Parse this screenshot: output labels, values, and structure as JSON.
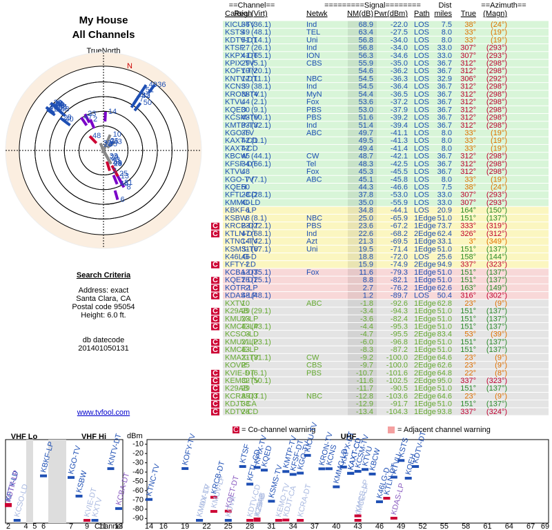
{
  "left": {
    "title": "My House",
    "subtitle": "All Channels",
    "north_label": "TrueNorth",
    "n": "N",
    "criteria_title": "Search Criteria",
    "criteria": [
      "Address: exact",
      "Santa Clara, CA",
      "Postal code 95054",
      "Height: 6.0 ft."
    ],
    "datecode_label": "db datecode",
    "datecode": "201401050131",
    "link": "www.tvfool.com"
  },
  "table": {
    "header1": [
      "==Channel==",
      "=========Signal========",
      "Dist",
      "==Azimuth=="
    ],
    "header2": [
      "Callsign",
      "Real",
      "(Virt)",
      "Netwk",
      "NM(dB)",
      "Pwr(dBm)",
      "Path",
      "miles",
      "True",
      "(Magn)"
    ],
    "rows": [
      [
        null,
        "KICU-TV",
        "36",
        "(36.1)",
        "Ind",
        "68.9",
        "-22.0",
        "LOS",
        "7.5",
        "38°",
        "(24°)"
      ],
      [
        null,
        "KSTS",
        "49",
        "(48.1)",
        "TEL",
        "63.4",
        "-27.5",
        "LOS",
        "8.0",
        "33°",
        "(19°)"
      ],
      [
        null,
        "KDTV-DT",
        "51",
        "(14.1)",
        "Uni",
        "56.8",
        "-34.0",
        "LOS",
        "8.0",
        "33°",
        "(19°)"
      ],
      [
        null,
        "KTSF",
        "27",
        "(26.1)",
        "Ind",
        "56.8",
        "-34.0",
        "LOS",
        "33.0",
        "307°",
        "(293°)"
      ],
      [
        null,
        "KKPX-DT",
        "41",
        "(65.1)",
        "ION",
        "56.3",
        "-34.6",
        "LOS",
        "33.0",
        "307°",
        "(293°)"
      ],
      [
        null,
        "KPIX-TV",
        "29",
        "(5.1)",
        "CBS",
        "55.9",
        "-35.0",
        "LOS",
        "36.7",
        "312°",
        "(298°)"
      ],
      [
        null,
        "KOFY-TV",
        "19",
        "(20.1)",
        null,
        "54.6",
        "-36.2",
        "LOS",
        "36.7",
        "312°",
        "(298°)"
      ],
      [
        null,
        "KNTV-DT",
        "12",
        "(11.1)",
        "NBC",
        "54.5",
        "-36.3",
        "LOS",
        "32.9",
        "306°",
        "(292°)"
      ],
      [
        null,
        "KCNS",
        "39",
        "(38.1)",
        "Ind",
        "54.5",
        "-36.4",
        "LOS",
        "36.7",
        "312°",
        "(298°)"
      ],
      [
        null,
        "KRON-TV",
        "38",
        "(4.1)",
        "MyN",
        "54.4",
        "-36.5",
        "LOS",
        "36.7",
        "312°",
        "(298°)"
      ],
      [
        null,
        "KTVU",
        "44",
        "(2.1)",
        "Fox",
        "53.6",
        "-37.2",
        "LOS",
        "36.7",
        "312°",
        "(298°)"
      ],
      [
        null,
        "KQED",
        "30",
        "(9.1)",
        "PBS",
        "53.0",
        "-37.9",
        "LOS",
        "36.7",
        "312°",
        "(298°)"
      ],
      [
        null,
        "KCSM-TV",
        "43",
        "(60.1)",
        "PBS",
        "51.6",
        "-39.2",
        "LOS",
        "36.7",
        "312°",
        "(298°)"
      ],
      [
        null,
        "KMTP-TV",
        "33",
        "(32.1)",
        "Ind",
        "51.4",
        "-39.4",
        "LOS",
        "36.7",
        "312°",
        "(298°)"
      ],
      [
        null,
        "KGO-TV",
        "35",
        null,
        "ABC",
        "49.7",
        "-41.1",
        "LOS",
        "8.0",
        "33°",
        "(19°)"
      ],
      [
        null,
        "KAXT-CD",
        "42",
        "(1.1)",
        null,
        "49.5",
        "-41.3",
        "LOS",
        "8.0",
        "33°",
        "(19°)"
      ],
      [
        null,
        "KAXT-CD",
        "42",
        null,
        null,
        "49.4",
        "-41.4",
        "LOS",
        "8.0",
        "33°",
        "(19°)"
      ],
      [
        null,
        "KBCW",
        "45",
        "(44.1)",
        "CW",
        "48.7",
        "-42.1",
        "LOS",
        "36.7",
        "312°",
        "(298°)"
      ],
      [
        null,
        "KFSF-DT",
        "34",
        "(66.1)",
        "Tel",
        "48.3",
        "-42.5",
        "LOS",
        "36.7",
        "312°",
        "(298°)"
      ],
      [
        null,
        "KTVU",
        "48",
        null,
        "Fox",
        "45.3",
        "-45.5",
        "LOS",
        "36.7",
        "312°",
        "(298°)"
      ],
      [
        null,
        "KGO-TV",
        "7",
        "(7.1)",
        "ABC",
        "45.1",
        "-45.8",
        "LOS",
        "8.0",
        "33°",
        "(19°)"
      ],
      [
        null,
        "KQEH",
        "50",
        null,
        null,
        "44.3",
        "-46.6",
        "LOS",
        "7.5",
        "38°",
        "(24°)"
      ],
      [
        null,
        "KFTL-CD",
        "28",
        "(28.1)",
        null,
        "37.8",
        "-53.0",
        "LOS",
        "33.0",
        "307°",
        "(293°)"
      ],
      [
        null,
        "KMMC-LD",
        "40",
        null,
        null,
        "35.0",
        "-55.9",
        "LOS",
        "33.0",
        "307°",
        "(293°)"
      ],
      [
        null,
        "KBKF-LP",
        "6",
        null,
        null,
        "34.8",
        "-44.1",
        "LOS",
        "20.9",
        "164°",
        "(150°)"
      ],
      [
        null,
        "KSBW",
        "8",
        "(8.1)",
        "NBC",
        "25.0",
        "-65.9",
        "1Edge",
        "51.0",
        "151°",
        "(137°)"
      ],
      [
        "C",
        "KRCB-DT",
        "23",
        "(22.1)",
        "PBS",
        "23.6",
        "-67.2",
        "1Edge",
        "73.7",
        "333°",
        "(319°)"
      ],
      [
        "C",
        "KTLN-DT",
        "47",
        "(68.1)",
        "Ind",
        "22.6",
        "-68.2",
        "2Edge",
        "62.4",
        "326°",
        "(312°)"
      ],
      [
        null,
        "KTNC-TV",
        "14",
        "(42.1)",
        "Azt",
        "21.3",
        "-69.5",
        "1Edge",
        "33.1",
        "3°",
        "(349°)"
      ],
      [
        null,
        "KSMS-TV",
        "31",
        "(67.1)",
        "Uni",
        "19.5",
        "-71.4",
        "1Edge",
        "51.0",
        "151°",
        "(137°)"
      ],
      [
        null,
        "K46LG-D",
        "46",
        null,
        null,
        "18.8",
        "-72.0",
        "LOS",
        "25.6",
        "158°",
        "(144°)"
      ],
      [
        "C",
        "KFTY-LD",
        "2",
        null,
        null,
        "15.9",
        "-74.9",
        "2Edge",
        "94.9",
        "337°",
        "(323°)"
      ],
      [
        null,
        "KCBA-DT",
        "13",
        "(35.1)",
        "Fox",
        "11.6",
        "-79.3",
        "1Edge",
        "51.0",
        "151°",
        "(137°)"
      ],
      [
        "C",
        "KQET-DT",
        "25",
        "(25.1)",
        null,
        "8.8",
        "-82.1",
        "1Edge",
        "51.0",
        "151°",
        "(137°)"
      ],
      [
        "C",
        "KOTR-LP",
        "2",
        null,
        null,
        "2.7",
        "-76.2",
        "1Edge",
        "62.6",
        "163°",
        "(149°)"
      ],
      [
        "C",
        "KDAS-LP",
        "48",
        "(48.1)",
        null,
        "1.2",
        "-89.7",
        "LOS",
        "50.4",
        "316°",
        "(302°)"
      ],
      [
        null,
        "KXTV",
        "10",
        null,
        "ABC",
        "-1.8",
        "-92.6",
        "1Edge",
        "62.8",
        "23°",
        "(9°)"
      ],
      [
        "C",
        "K29AB",
        "29",
        "(29.1)",
        null,
        "-3.4",
        "-94.3",
        "1Edge",
        "51.0",
        "151°",
        "(137°)"
      ],
      [
        "C",
        "KMUV-LP",
        "23",
        null,
        null,
        "-3.6",
        "-82.4",
        "1Edge",
        "51.0",
        "151°",
        "(137°)"
      ],
      [
        "C",
        "KMCE-LP",
        "43",
        "(43.1)",
        null,
        "-4.4",
        "-95.3",
        "1Edge",
        "51.0",
        "151°",
        "(137°)"
      ],
      [
        null,
        "KCSO-LD",
        "3",
        null,
        null,
        "-4.7",
        "-95.5",
        "2Edge",
        "83.4",
        "53°",
        "(39°)"
      ],
      [
        "C",
        "KMUV-LP",
        "21",
        "(23.1)",
        null,
        "-6.0",
        "-96.8",
        "1Edge",
        "51.0",
        "151°",
        "(137°)"
      ],
      [
        "C",
        "KMCE-LP",
        "43",
        null,
        null,
        "-8.3",
        "-87.2",
        "1Edge",
        "51.0",
        "151°",
        "(137°)"
      ],
      [
        null,
        "KMAX-TV",
        "21",
        "(31.1)",
        "CW",
        "-9.2",
        "-100.0",
        "2Edge",
        "64.6",
        "23°",
        "(9°)"
      ],
      [
        null,
        "KOVR",
        "25",
        null,
        "CBS",
        "-9.7",
        "-100.0",
        "2Edge",
        "62.6",
        "23°",
        "(9°)"
      ],
      [
        "C",
        "KVIE-DT",
        "9",
        "(6.1)",
        "PBS",
        "-10.7",
        "-101.6",
        "2Edge",
        "64.8",
        "22°",
        "(8°)"
      ],
      [
        "C",
        "KEMO-TV",
        "32",
        "(50.1)",
        null,
        "-11.6",
        "-102.5",
        "2Edge",
        "95.0",
        "337°",
        "(323°)"
      ],
      [
        "C",
        "K29AB",
        "29",
        null,
        null,
        "-11.7",
        "-90.5",
        "1Edge",
        "51.0",
        "151°",
        "(137°)"
      ],
      [
        "C",
        "KCRA-DT",
        "35",
        "(3.1)",
        "NBC",
        "-12.8",
        "-103.6",
        "2Edge",
        "64.6",
        "23°",
        "(9°)"
      ],
      [
        "C",
        "KDJT-CA",
        "33",
        null,
        null,
        "-12.9",
        "-91.7",
        "1Edge",
        "51.0",
        "151°",
        "(137°)"
      ],
      [
        "C",
        "KDTV-CD",
        "28",
        null,
        null,
        "-13.4",
        "-104.3",
        "1Edge",
        "93.8",
        "337°",
        "(324°)"
      ]
    ]
  },
  "chart_data": {
    "type": "spectrum",
    "vhf_lo": "VHF Lo",
    "vhf_hi": "VHF Hi",
    "uhf": "UHF",
    "y_label": "dBm",
    "x_label": "Channel",
    "legend": [
      "C",
      "= Co-channel warning",
      "= Adjacent channel warning"
    ],
    "ylim": [
      -5,
      -95
    ],
    "yticks": [
      -10,
      -20,
      -30,
      -40,
      -50,
      -60,
      -70,
      -80,
      -90
    ],
    "vhf_ticks": [
      2,
      4,
      5,
      6,
      7,
      9,
      11,
      13
    ],
    "uhf_xlim": [
      14,
      69
    ],
    "uhf_ticks": [
      14,
      16,
      19,
      22,
      25,
      28,
      31,
      34,
      37,
      40,
      43,
      46,
      49,
      52,
      55,
      58,
      61,
      64,
      67,
      69
    ]
  }
}
